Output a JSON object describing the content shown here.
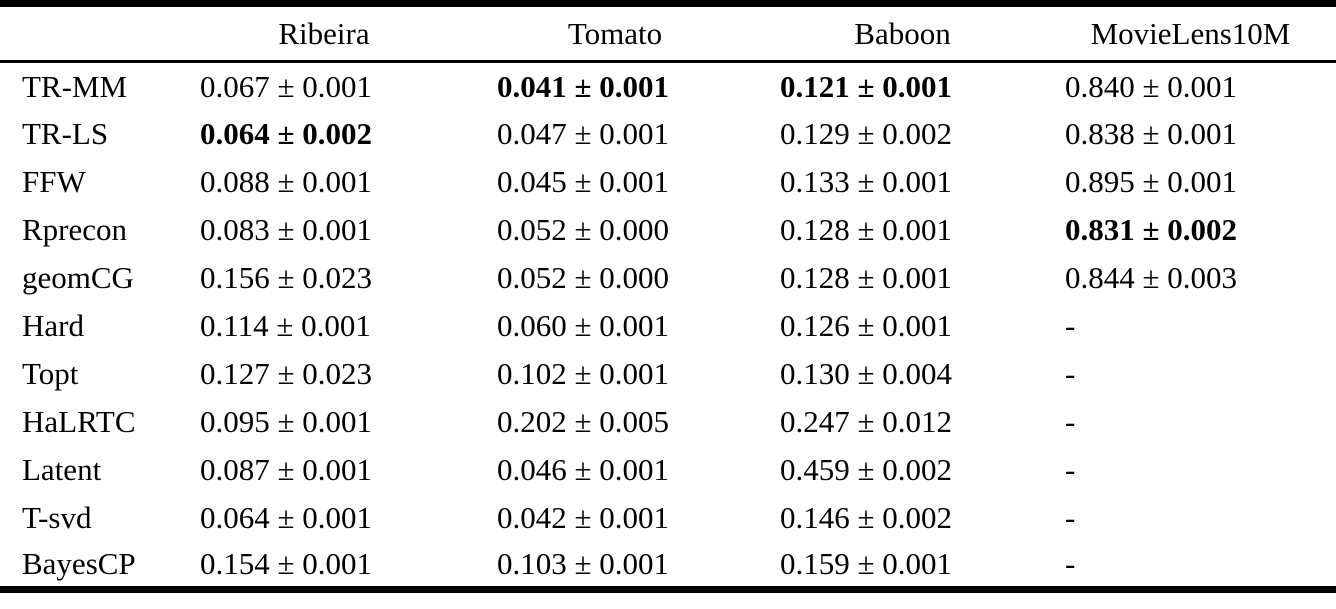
{
  "table": {
    "columns": [
      "",
      "Ribeira",
      "Tomato",
      "Baboon",
      "MovieLens10M"
    ],
    "missing_marker": "-",
    "text_color": "#000000",
    "background_color": "#ffffff",
    "rows": [
      {
        "method": "TR-MM",
        "cells": [
          {
            "v": "0.067 ± 0.001",
            "b": false
          },
          {
            "v": "0.041 ± 0.001",
            "b": true
          },
          {
            "v": "0.121 ± 0.001",
            "b": true
          },
          {
            "v": "0.840 ± 0.001",
            "b": false
          }
        ]
      },
      {
        "method": "TR-LS",
        "cells": [
          {
            "v": "0.064 ± 0.002",
            "b": true
          },
          {
            "v": "0.047 ± 0.001",
            "b": false
          },
          {
            "v": "0.129 ± 0.002",
            "b": false
          },
          {
            "v": "0.838 ± 0.001",
            "b": false
          }
        ]
      },
      {
        "method": "FFW",
        "cells": [
          {
            "v": "0.088 ± 0.001",
            "b": false
          },
          {
            "v": "0.045 ± 0.001",
            "b": false
          },
          {
            "v": "0.133 ± 0.001",
            "b": false
          },
          {
            "v": "0.895 ± 0.001",
            "b": false
          }
        ]
      },
      {
        "method": "Rprecon",
        "cells": [
          {
            "v": "0.083 ± 0.001",
            "b": false
          },
          {
            "v": "0.052 ± 0.000",
            "b": false
          },
          {
            "v": "0.128 ± 0.001",
            "b": false
          },
          {
            "v": "0.831 ± 0.002",
            "b": true
          }
        ]
      },
      {
        "method": "geomCG",
        "cells": [
          {
            "v": "0.156 ± 0.023",
            "b": false
          },
          {
            "v": "0.052 ± 0.000",
            "b": false
          },
          {
            "v": "0.128 ± 0.001",
            "b": false
          },
          {
            "v": "0.844 ± 0.003",
            "b": false
          }
        ]
      },
      {
        "method": "Hard",
        "cells": [
          {
            "v": "0.114 ± 0.001",
            "b": false
          },
          {
            "v": "0.060 ± 0.001",
            "b": false
          },
          {
            "v": "0.126 ± 0.001",
            "b": false
          },
          {
            "v": "-",
            "b": false
          }
        ]
      },
      {
        "method": "Topt",
        "cells": [
          {
            "v": "0.127 ± 0.023",
            "b": false
          },
          {
            "v": "0.102 ± 0.001",
            "b": false
          },
          {
            "v": "0.130 ± 0.004",
            "b": false
          },
          {
            "v": "-",
            "b": false
          }
        ]
      },
      {
        "method": "HaLRTC",
        "cells": [
          {
            "v": "0.095 ± 0.001",
            "b": false
          },
          {
            "v": "0.202 ± 0.005",
            "b": false
          },
          {
            "v": "0.247 ± 0.012",
            "b": false
          },
          {
            "v": "-",
            "b": false
          }
        ]
      },
      {
        "method": "Latent",
        "cells": [
          {
            "v": "0.087 ± 0.001",
            "b": false
          },
          {
            "v": "0.046 ± 0.001",
            "b": false
          },
          {
            "v": "0.459 ± 0.002",
            "b": false
          },
          {
            "v": "-",
            "b": false
          }
        ]
      },
      {
        "method": "T-svd",
        "cells": [
          {
            "v": "0.064 ± 0.001",
            "b": false
          },
          {
            "v": "0.042 ± 0.001",
            "b": false
          },
          {
            "v": "0.146 ± 0.002",
            "b": false
          },
          {
            "v": "-",
            "b": false
          }
        ]
      },
      {
        "method": "BayesCP",
        "cells": [
          {
            "v": "0.154 ± 0.001",
            "b": false
          },
          {
            "v": "0.103 ± 0.001",
            "b": false
          },
          {
            "v": "0.159 ± 0.001",
            "b": false
          },
          {
            "v": "-",
            "b": false
          }
        ]
      }
    ]
  }
}
